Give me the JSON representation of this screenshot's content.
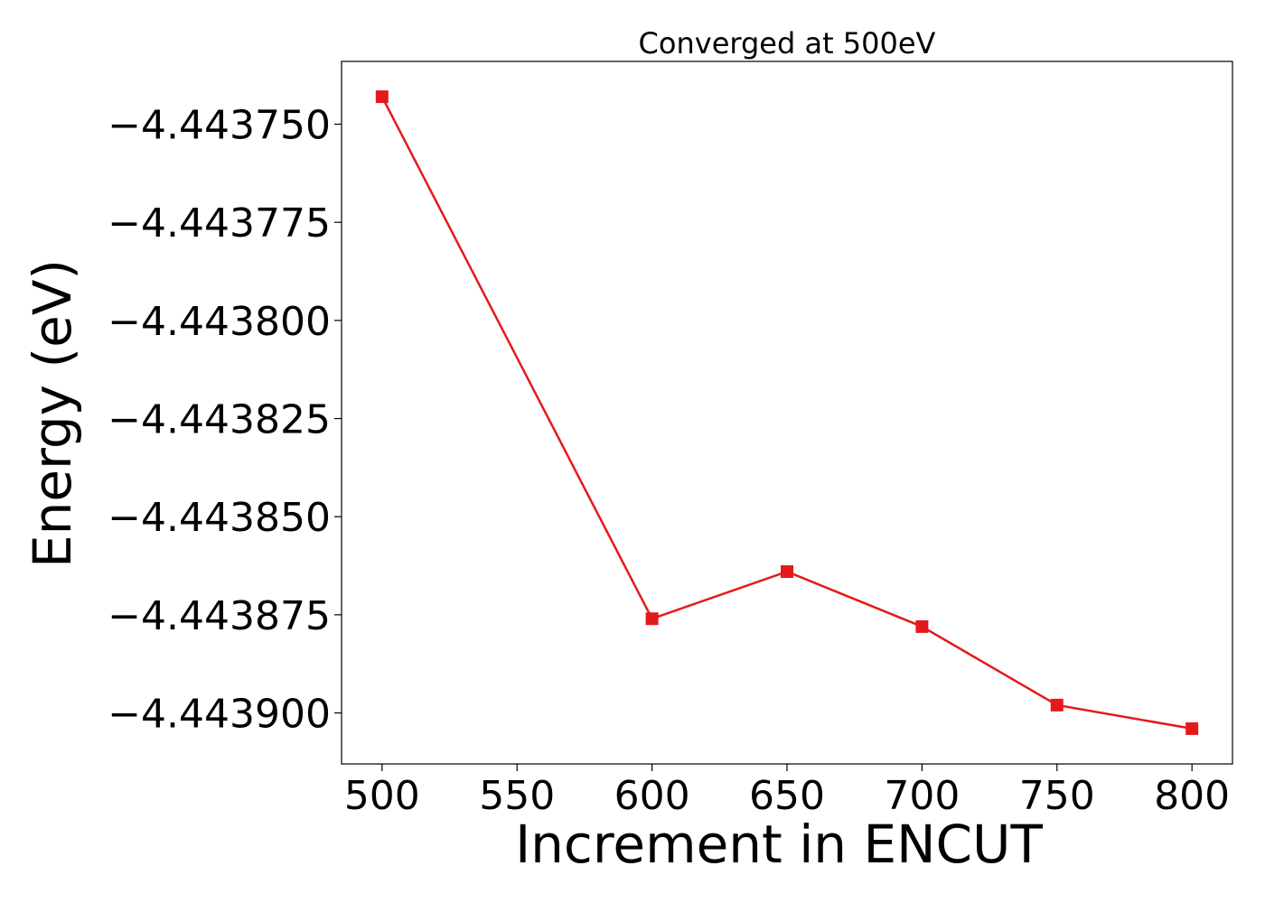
{
  "chart_data": {
    "type": "line",
    "title": "Converged at 500eV",
    "xlabel": "Increment in ENCUT",
    "ylabel": "Energy (eV)",
    "x": [
      500,
      600,
      650,
      700,
      750,
      800
    ],
    "series": [
      {
        "values": [
          -4.443743,
          -4.443876,
          -4.443864,
          -4.443878,
          -4.443898,
          -4.443904
        ],
        "color": "#e31a1c",
        "marker": "square"
      }
    ],
    "xlim": [
      485,
      815
    ],
    "ylim": [
      -4.443913,
      -4.443734
    ],
    "xticks": [
      500,
      550,
      600,
      650,
      700,
      750,
      800
    ],
    "xtick_labels": [
      "500",
      "550",
      "600",
      "650",
      "700",
      "750",
      "800"
    ],
    "yticks": [
      -4.44375,
      -4.443775,
      -4.4438,
      -4.443825,
      -4.44385,
      -4.443875,
      -4.4439
    ],
    "ytick_labels": [
      "−4.443750",
      "−4.443775",
      "−4.443800",
      "−4.443825",
      "−4.443850",
      "−4.443875",
      "−4.443900"
    ],
    "grid": false,
    "legend": false
  }
}
